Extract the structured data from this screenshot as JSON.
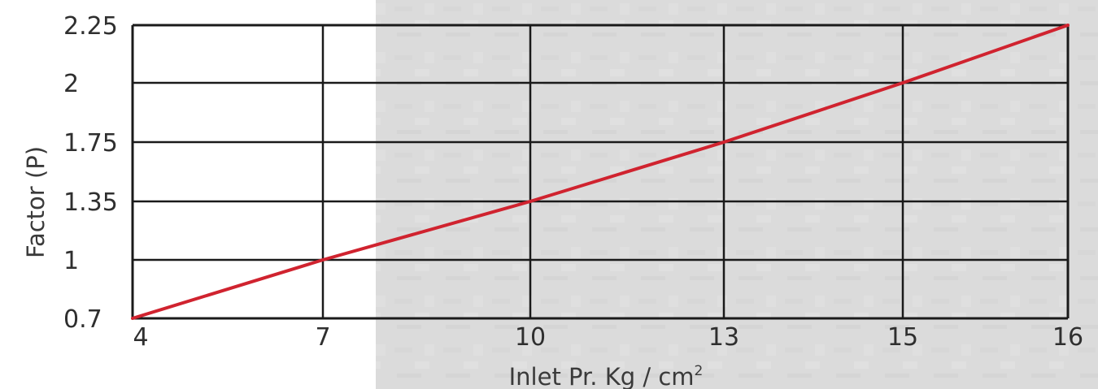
{
  "chart_data": {
    "type": "line",
    "xlabel": "Inlet Pr. Kg / cm",
    "xlabel_superscript": "2",
    "ylabel": "Factor (P)",
    "x_categories": [
      "4",
      "7",
      "10",
      "13",
      "15",
      "16"
    ],
    "y_categories": [
      "0.7",
      "1",
      "1.35",
      "1.75",
      "2",
      "2.25"
    ],
    "series": [
      {
        "points": [
          {
            "x": "4",
            "y": "0.7"
          },
          {
            "x": "7",
            "y": "1"
          },
          {
            "x": "10",
            "y": "1.35"
          },
          {
            "x": "13",
            "y": "1.75"
          },
          {
            "x": "15",
            "y": "2"
          },
          {
            "x": "16",
            "y": "2.25"
          }
        ],
        "color": "#d0232f"
      }
    ],
    "grid": true,
    "grid_color": "#1a1a1a",
    "background": {
      "left_color": "#ffffff",
      "right_color": "#dcdcdc"
    }
  }
}
